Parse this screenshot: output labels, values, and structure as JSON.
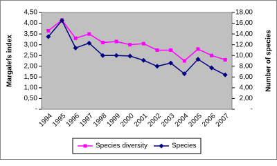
{
  "chart_data": {
    "type": "line",
    "y_label": "Margalefs index",
    "y2_label": "Number of species",
    "categories": [
      "1994",
      "1995",
      "1996",
      "1997",
      "1998",
      "1999",
      "2000",
      "2001",
      "2002",
      "2003",
      "2004",
      "2005",
      "2006",
      "2007"
    ],
    "series": [
      {
        "name": "Species diversity",
        "color": "#ff00ff",
        "marker": "square",
        "values": [
          3.65,
          4.15,
          3.3,
          3.5,
          3.1,
          3.15,
          3.0,
          3.05,
          2.75,
          2.75,
          2.25,
          2.8,
          2.5,
          2.3
        ]
      },
      {
        "name": "Species",
        "color": "#000080",
        "marker": "diamond",
        "axis": "y2",
        "values": [
          13.5,
          16.5,
          11.4,
          12.3,
          10,
          10,
          9.9,
          9.1,
          8,
          8.6,
          6.6,
          9.3,
          7.7,
          6.4
        ]
      }
    ],
    "ylim": [
      0,
      4.5
    ],
    "yticks": [
      {
        "value": 0,
        "label": "-"
      },
      {
        "value": 0.5,
        "label": "0,50"
      },
      {
        "value": 1,
        "label": "1,00"
      },
      {
        "value": 1.5,
        "label": "1,50"
      },
      {
        "value": 2,
        "label": "2,00"
      },
      {
        "value": 2.5,
        "label": "2,50"
      },
      {
        "value": 3,
        "label": "3,00"
      },
      {
        "value": 3.5,
        "label": "3,50"
      },
      {
        "value": 4,
        "label": "4,00"
      },
      {
        "value": 4.5,
        "label": "4,50"
      }
    ],
    "y2lim": [
      0,
      18
    ],
    "y2ticks": [
      {
        "value": 0,
        "label": "-"
      },
      {
        "value": 2,
        "label": "2,00"
      },
      {
        "value": 4,
        "label": "4,00"
      },
      {
        "value": 6,
        "label": "6,00"
      },
      {
        "value": 8,
        "label": "8,00"
      },
      {
        "value": 10,
        "label": "10,00"
      },
      {
        "value": 12,
        "label": "12,00"
      },
      {
        "value": 14,
        "label": "14,00"
      },
      {
        "value": 16,
        "label": "16,00"
      },
      {
        "value": 18,
        "label": "18,00"
      }
    ],
    "legend": "bottom"
  }
}
